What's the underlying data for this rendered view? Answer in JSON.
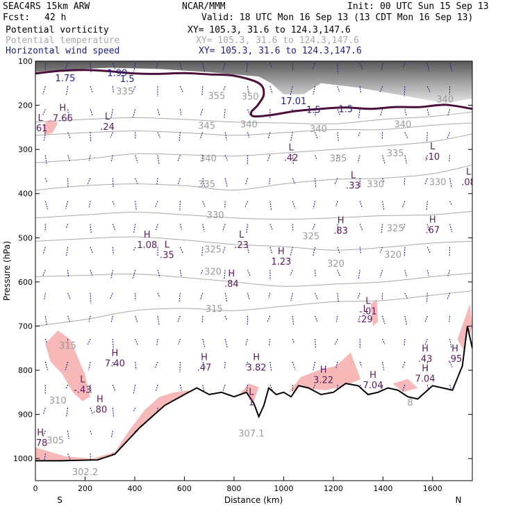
{
  "header": {
    "model": "SEAC4RS 15km ARW",
    "org": "NCAR/MMM",
    "init": "Init: 00 UTC Sun 15 Sep 13",
    "fcst_label": "Fcst:",
    "fcst_value": "42 h",
    "valid": "Valid: 18 UTC Mon 16 Sep 13 (13 CDT Mon 16 Sep 13)",
    "fields": [
      {
        "name": "Potential vorticity",
        "xy": "XY= 105.3, 31.6 to 124.3,147.6",
        "color": "#000000"
      },
      {
        "name": "Potential temperature",
        "xy": "XY= 105.3, 31.6 to 124.3,147.6",
        "color": "#a8a8a8"
      },
      {
        "name": "Horizontal wind speed",
        "xy": "XY= 105.3, 31.6 to 124.3,147.6",
        "color": "#1c1c8a"
      }
    ]
  },
  "chart_data": {
    "type": "cross-section",
    "xlabel": "Distance (km)",
    "ylabel": "Pressure (hPa)",
    "xlim": [
      0,
      1760
    ],
    "ylim": [
      1050,
      100
    ],
    "x_ticks": [
      0,
      200,
      400,
      600,
      800,
      1000,
      1200,
      1400,
      1600
    ],
    "y_ticks": [
      100,
      200,
      300,
      400,
      500,
      600,
      700,
      800,
      900,
      1000
    ],
    "left_end_label": "S",
    "right_end_label": "N",
    "terrain": [
      [
        0,
        1005
      ],
      [
        100,
        1005
      ],
      [
        250,
        1003
      ],
      [
        320,
        990
      ],
      [
        420,
        930
      ],
      [
        520,
        880
      ],
      [
        600,
        855
      ],
      [
        650,
        840
      ],
      [
        700,
        855
      ],
      [
        750,
        850
      ],
      [
        800,
        860
      ],
      [
        850,
        850
      ],
      [
        880,
        875
      ],
      [
        900,
        905
      ],
      [
        920,
        880
      ],
      [
        940,
        840
      ],
      [
        970,
        855
      ],
      [
        1000,
        850
      ],
      [
        1030,
        860
      ],
      [
        1060,
        835
      ],
      [
        1100,
        840
      ],
      [
        1150,
        855
      ],
      [
        1200,
        850
      ],
      [
        1250,
        830
      ],
      [
        1300,
        835
      ],
      [
        1340,
        855
      ],
      [
        1380,
        850
      ],
      [
        1420,
        840
      ],
      [
        1460,
        845
      ],
      [
        1500,
        860
      ],
      [
        1540,
        865
      ],
      [
        1560,
        855
      ],
      [
        1600,
        835
      ],
      [
        1640,
        840
      ],
      [
        1680,
        845
      ],
      [
        1720,
        790
      ],
      [
        1740,
        700
      ],
      [
        1760,
        750
      ]
    ],
    "pv_contours": [
      {
        "label": "1.5",
        "points": [
          [
            0,
            128
          ],
          [
            100,
            122
          ],
          [
            200,
            120
          ],
          [
            300,
            123
          ],
          [
            400,
            128
          ],
          [
            500,
            129
          ],
          [
            600,
            127
          ],
          [
            700,
            130
          ],
          [
            800,
            133
          ],
          [
            900,
            150
          ],
          [
            920,
            175
          ],
          [
            895,
            200
          ],
          [
            870,
            215
          ],
          [
            880,
            225
          ],
          [
            950,
            222
          ],
          [
            1050,
            213
          ],
          [
            1150,
            208
          ],
          [
            1250,
            205
          ],
          [
            1350,
            208
          ],
          [
            1450,
            204
          ],
          [
            1550,
            204
          ],
          [
            1650,
            199
          ],
          [
            1760,
            208
          ]
        ]
      }
    ],
    "pv_labels": [
      {
        "text": "1.75",
        "x": 120,
        "p": 140
      },
      {
        "text": "1.99",
        "x": 330,
        "p": 128
      },
      {
        "text": "1.5",
        "x": 370,
        "p": 142
      },
      {
        "text": "17.01",
        "x": 1040,
        "p": 192
      },
      {
        "text": "1.5",
        "x": 1120,
        "p": 212
      },
      {
        "text": "1.5",
        "x": 1250,
        "p": 210
      }
    ],
    "theta_contours": [
      {
        "label": "345",
        "points": [
          [
            0,
            238
          ],
          [
            200,
            232
          ],
          [
            400,
            228
          ],
          [
            600,
            232
          ],
          [
            800,
            238
          ],
          [
            1000,
            240
          ],
          [
            1200,
            242
          ],
          [
            1400,
            232
          ],
          [
            1600,
            225
          ],
          [
            1760,
            215
          ]
        ]
      },
      {
        "label": "340",
        "points": [
          [
            0,
            268
          ],
          [
            200,
            262
          ],
          [
            400,
            258
          ],
          [
            600,
            262
          ],
          [
            800,
            268
          ],
          [
            1000,
            262
          ],
          [
            1200,
            255
          ],
          [
            1400,
            255
          ],
          [
            1600,
            245
          ],
          [
            1760,
            240
          ]
        ]
      },
      {
        "label": "335",
        "points": [
          [
            0,
            330
          ],
          [
            200,
            322
          ],
          [
            400,
            310
          ],
          [
            600,
            312
          ],
          [
            800,
            315
          ],
          [
            1000,
            308
          ],
          [
            1200,
            300
          ],
          [
            1400,
            292
          ],
          [
            1600,
            282
          ],
          [
            1760,
            265
          ]
        ]
      },
      {
        "label": "330",
        "points": [
          [
            0,
            392
          ],
          [
            200,
            382
          ],
          [
            400,
            378
          ],
          [
            600,
            382
          ],
          [
            800,
            392
          ],
          [
            1000,
            378
          ],
          [
            1200,
            368
          ],
          [
            1400,
            365
          ],
          [
            1600,
            355
          ],
          [
            1760,
            335
          ]
        ]
      },
      {
        "label": "325",
        "points": [
          [
            0,
            455
          ],
          [
            200,
            448
          ],
          [
            400,
            442
          ],
          [
            600,
            448
          ],
          [
            800,
            455
          ],
          [
            1000,
            458
          ],
          [
            1200,
            455
          ],
          [
            1400,
            450
          ],
          [
            1600,
            448
          ],
          [
            1760,
            440
          ]
        ]
      },
      {
        "label": "320",
        "points": [
          [
            0,
            508
          ],
          [
            200,
            502
          ],
          [
            400,
            498
          ],
          [
            600,
            505
          ],
          [
            800,
            515
          ],
          [
            1000,
            520
          ],
          [
            1200,
            528
          ],
          [
            1400,
            522
          ],
          [
            1600,
            512
          ],
          [
            1760,
            508
          ]
        ]
      },
      {
        "label": "315",
        "points": [
          [
            0,
            588
          ],
          [
            200,
            585
          ],
          [
            400,
            582
          ],
          [
            600,
            590
          ],
          [
            800,
            600
          ],
          [
            1000,
            610
          ],
          [
            1200,
            605
          ],
          [
            1400,
            600
          ],
          [
            1600,
            588
          ],
          [
            1760,
            580
          ]
        ]
      },
      {
        "label": "310",
        "points": [
          [
            0,
            700
          ],
          [
            200,
            685
          ],
          [
            400,
            665
          ],
          [
            600,
            660
          ],
          [
            800,
            665
          ],
          [
            1000,
            655
          ],
          [
            1200,
            645
          ],
          [
            1400,
            642
          ],
          [
            1600,
            630
          ],
          [
            1760,
            620
          ]
        ]
      }
    ],
    "theta_labels": [
      {
        "text": "335",
        "x": 360,
        "p": 170
      },
      {
        "text": "355",
        "x": 730,
        "p": 180
      },
      {
        "text": "350",
        "x": 865,
        "p": 182
      },
      {
        "text": "345",
        "x": 690,
        "p": 248
      },
      {
        "text": "340",
        "x": 860,
        "p": 245
      },
      {
        "text": "340",
        "x": 1140,
        "p": 255
      },
      {
        "text": "340",
        "x": 1480,
        "p": 245
      },
      {
        "text": "340",
        "x": 1650,
        "p": 188
      },
      {
        "text": "340",
        "x": 695,
        "p": 322
      },
      {
        "text": "335",
        "x": 1220,
        "p": 322
      },
      {
        "text": "335",
        "x": 1450,
        "p": 310
      },
      {
        "text": "335",
        "x": 690,
        "p": 380
      },
      {
        "text": "330",
        "x": 1370,
        "p": 380
      },
      {
        "text": "330",
        "x": 1620,
        "p": 375
      },
      {
        "text": "330",
        "x": 725,
        "p": 450
      },
      {
        "text": "325",
        "x": 1110,
        "p": 498
      },
      {
        "text": "325",
        "x": 1450,
        "p": 480
      },
      {
        "text": "325",
        "x": 715,
        "p": 528
      },
      {
        "text": "320",
        "x": 1210,
        "p": 560
      },
      {
        "text": "320",
        "x": 1440,
        "p": 540
      },
      {
        "text": "320",
        "x": 715,
        "p": 578
      },
      {
        "text": "315",
        "x": 720,
        "p": 662
      },
      {
        "text": "315",
        "x": 130,
        "p": 746
      },
      {
        "text": "310",
        "x": 90,
        "p": 870
      },
      {
        "text": "305",
        "x": 80,
        "p": 960
      },
      {
        "text": "302.2",
        "x": 200,
        "p": 1032
      },
      {
        "text": "307.1",
        "x": 870,
        "p": 945
      },
      {
        "text": "8",
        "x": 1510,
        "p": 875
      }
    ],
    "highs_lows": [
      {
        "type": "H",
        "value": "7.66",
        "x": 110,
        "p": 225
      },
      {
        "type": "L",
        "value": ".61",
        "x": 20,
        "p": 248
      },
      {
        "type": "L",
        "value": ".24",
        "x": 290,
        "p": 245
      },
      {
        "type": "L",
        "value": ".42",
        "x": 1030,
        "p": 315
      },
      {
        "type": "L",
        "value": ".33",
        "x": 1280,
        "p": 378
      },
      {
        "type": "L",
        "value": ".10",
        "x": 1600,
        "p": 312
      },
      {
        "type": "L",
        "value": ".08",
        "x": 1745,
        "p": 370
      },
      {
        "type": "H",
        "value": "1.08",
        "x": 450,
        "p": 512
      },
      {
        "type": "L",
        "value": ".35",
        "x": 530,
        "p": 535
      },
      {
        "type": "L",
        "value": ".23",
        "x": 830,
        "p": 512
      },
      {
        "type": "H",
        "value": "1.23",
        "x": 990,
        "p": 550
      },
      {
        "type": "H",
        "value": ".83",
        "x": 1230,
        "p": 480
      },
      {
        "type": "H",
        "value": ".67",
        "x": 1600,
        "p": 478
      },
      {
        "type": "H",
        "value": ".84",
        "x": 790,
        "p": 600
      },
      {
        "type": "L",
        "value": "-.01",
        "x": 1340,
        "p": 662
      },
      {
        "type": "L",
        "value": ".29",
        "x": 1330,
        "p": 680
      },
      {
        "type": "H",
        "value": "7.40",
        "x": 320,
        "p": 780
      },
      {
        "type": "H",
        "value": ".47",
        "x": 680,
        "p": 790
      },
      {
        "type": "H",
        "value": "3.82",
        "x": 890,
        "p": 790
      },
      {
        "type": "H",
        "value": "3.22",
        "x": 1160,
        "p": 818
      },
      {
        "type": "H",
        "value": "7.04",
        "x": 1360,
        "p": 830
      },
      {
        "type": "H",
        "value": ".43",
        "x": 1570,
        "p": 770
      },
      {
        "type": "H",
        "value": "7.04",
        "x": 1570,
        "p": 815
      },
      {
        "type": "H",
        "value": ".95",
        "x": 1690,
        "p": 770
      },
      {
        "type": "L",
        "value": "-.43",
        "x": 190,
        "p": 840
      },
      {
        "type": "H",
        "value": ".80",
        "x": 260,
        "p": 885
      },
      {
        "type": "H",
        "value": ".78",
        "x": 20,
        "p": 960
      },
      {
        "type": "L",
        "value": "1",
        "x": 870,
        "p": 868
      }
    ],
    "pv_negative_regions": [
      [
        [
          40,
          740
        ],
        [
          90,
          710
        ],
        [
          140,
          730
        ],
        [
          200,
          810
        ],
        [
          220,
          860
        ],
        [
          190,
          870
        ],
        [
          150,
          850
        ],
        [
          110,
          810
        ],
        [
          60,
          780
        ]
      ],
      [
        [
          30,
          245
        ],
        [
          60,
          232
        ],
        [
          90,
          240
        ],
        [
          70,
          262
        ],
        [
          35,
          268
        ]
      ],
      [
        [
          0,
          975
        ],
        [
          120,
          995
        ],
        [
          230,
          1000
        ],
        [
          320,
          985
        ],
        [
          380,
          935
        ],
        [
          440,
          890
        ],
        [
          500,
          860
        ],
        [
          560,
          850
        ],
        [
          620,
          845
        ],
        [
          600,
          880
        ],
        [
          520,
          900
        ],
        [
          440,
          945
        ],
        [
          360,
          990
        ],
        [
          200,
          1005
        ],
        [
          0,
          1005
        ]
      ],
      [
        [
          820,
          855
        ],
        [
          860,
          830
        ],
        [
          900,
          838
        ],
        [
          880,
          870
        ],
        [
          830,
          868
        ]
      ],
      [
        [
          1020,
          850
        ],
        [
          1070,
          815
        ],
        [
          1140,
          800
        ],
        [
          1210,
          790
        ],
        [
          1270,
          760
        ],
        [
          1310,
          820
        ],
        [
          1250,
          835
        ],
        [
          1170,
          845
        ],
        [
          1060,
          840
        ]
      ],
      [
        [
          1350,
          650
        ],
        [
          1375,
          640
        ],
        [
          1380,
          690
        ],
        [
          1360,
          700
        ]
      ],
      [
        [
          1440,
          830
        ],
        [
          1500,
          820
        ],
        [
          1540,
          840
        ],
        [
          1480,
          850
        ]
      ],
      [
        [
          1700,
          730
        ],
        [
          1750,
          650
        ],
        [
          1760,
          700
        ],
        [
          1730,
          760
        ]
      ]
    ],
    "tropopause_shading": [
      [
        [
          0,
          100
        ],
        [
          1760,
          100
        ],
        [
          1760,
          185
        ],
        [
          1650,
          195
        ],
        [
          1500,
          180
        ],
        [
          1300,
          160
        ],
        [
          1150,
          150
        ],
        [
          1080,
          175
        ],
        [
          1000,
          175
        ],
        [
          950,
          150
        ],
        [
          900,
          135
        ],
        [
          700,
          125
        ],
        [
          500,
          118
        ],
        [
          300,
          115
        ],
        [
          100,
          120
        ],
        [
          0,
          125
        ]
      ]
    ],
    "wind_vectors_note": "Horizontal wind speed vectors"
  }
}
